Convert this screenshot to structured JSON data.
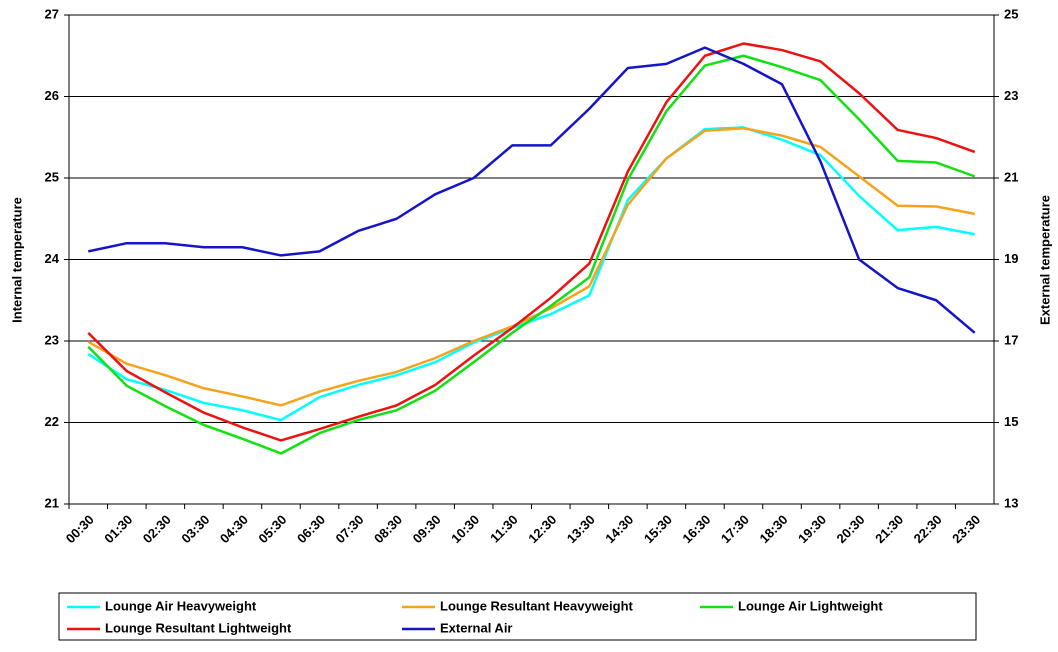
{
  "chart_data": {
    "type": "line",
    "categories": [
      "00:30",
      "01:30",
      "02:30",
      "03:30",
      "04:30",
      "05:30",
      "06:30",
      "07:30",
      "08:30",
      "09:30",
      "10:30",
      "11:30",
      "12:30",
      "13:30",
      "14:30",
      "15:30",
      "16:30",
      "17:30",
      "18:30",
      "19:30",
      "20:30",
      "21:30",
      "22:30",
      "23:30"
    ],
    "y_label": "Internal temperature",
    "y2_label": "External temperature",
    "ylim": [
      21,
      27
    ],
    "yticks": [
      21,
      22,
      23,
      24,
      25,
      26,
      27
    ],
    "y2lim": [
      13,
      25
    ],
    "y2ticks": [
      13,
      15,
      17,
      19,
      21,
      23,
      25
    ],
    "grid": true,
    "series": [
      {
        "name": "Lounge Air Heavyweight",
        "color": "#00ffff",
        "values": [
          22.84,
          22.53,
          22.4,
          22.24,
          22.15,
          22.03,
          22.31,
          22.46,
          22.58,
          22.74,
          22.98,
          23.16,
          23.33,
          23.56,
          24.73,
          25.24,
          25.6,
          25.62,
          25.47,
          25.28,
          24.78,
          24.36,
          24.4,
          24.31
        ]
      },
      {
        "name": "Lounge Resultant Heavyweight",
        "color": "#f7a21b",
        "values": [
          22.99,
          22.72,
          22.58,
          22.42,
          22.32,
          22.21,
          22.38,
          22.51,
          22.62,
          22.79,
          23.0,
          23.18,
          23.4,
          23.67,
          24.67,
          25.24,
          25.58,
          25.61,
          25.52,
          25.38,
          25.02,
          24.66,
          24.65,
          24.56
        ]
      },
      {
        "name": "Lounge Air Lightweight",
        "color": "#11e011",
        "values": [
          22.93,
          22.45,
          22.2,
          21.97,
          21.8,
          21.62,
          21.87,
          22.03,
          22.15,
          22.39,
          22.74,
          23.1,
          23.43,
          23.78,
          24.98,
          25.82,
          26.38,
          26.5,
          26.36,
          26.2,
          25.72,
          25.21,
          25.19,
          25.02
        ]
      },
      {
        "name": "Lounge Resultant Lightweight",
        "color": "#ee1111",
        "values": [
          23.1,
          22.63,
          22.37,
          22.12,
          21.94,
          21.78,
          21.92,
          22.07,
          22.21,
          22.46,
          22.82,
          23.16,
          23.53,
          23.95,
          25.08,
          25.93,
          26.5,
          26.65,
          26.57,
          26.43,
          26.04,
          25.59,
          25.49,
          25.32
        ]
      },
      {
        "name": "External Air",
        "color": "#1515c8",
        "axis": "y2",
        "values": [
          19.2,
          19.4,
          19.4,
          19.3,
          19.3,
          19.1,
          19.2,
          19.7,
          20.0,
          20.6,
          21.0,
          21.8,
          21.8,
          22.7,
          23.7,
          23.8,
          24.2,
          23.8,
          23.3,
          21.4,
          19.0,
          18.3,
          18.0,
          17.2
        ]
      }
    ]
  }
}
